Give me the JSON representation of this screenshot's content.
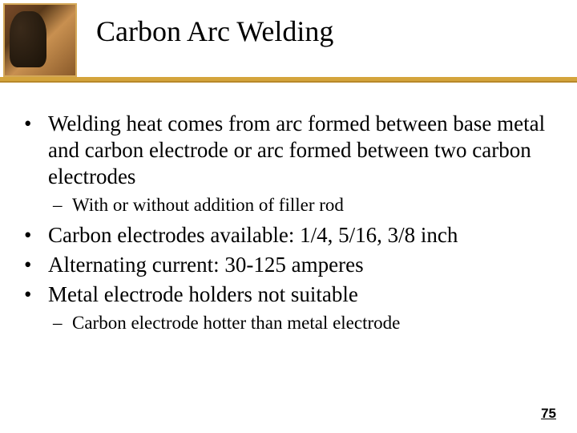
{
  "slide": {
    "title": "Carbon Arc Welding",
    "bullets": [
      {
        "level": 1,
        "text": "Welding heat comes from arc formed between base metal and carbon electrode or arc formed between two carbon electrodes"
      },
      {
        "level": 2,
        "text": "With or without addition of filler rod"
      },
      {
        "level": 1,
        "text": "Carbon electrodes available: 1/4, 5/16, 3/8 inch"
      },
      {
        "level": 1,
        "text": "Alternating current: 30-125 amperes"
      },
      {
        "level": 1,
        "text": "Metal electrode holders not suitable"
      },
      {
        "level": 2,
        "text": "Carbon electrode hotter than metal electrode"
      }
    ],
    "page_number": "75"
  },
  "style": {
    "title_fontsize": 36,
    "bullet1_fontsize": 27,
    "bullet2_fontsize": 23,
    "gold_bar_color": "#d4a43c",
    "background": "#ffffff",
    "text_color": "#000000",
    "corner_border_color": "#d4a858"
  }
}
